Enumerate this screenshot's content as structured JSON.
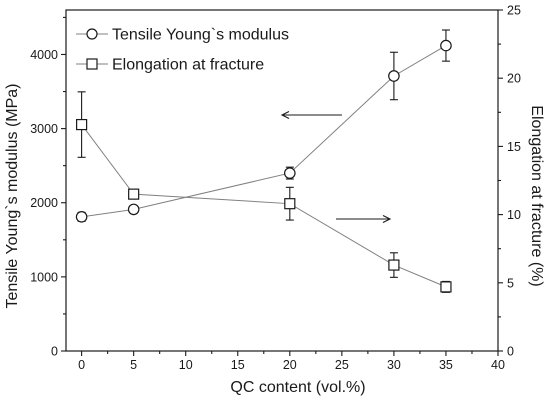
{
  "chart_data": {
    "type": "line",
    "xlabel": "QC content (vol.%)",
    "ylabel_left": "Tensile Young`s modulus (MPa)",
    "ylabel_right": "Elongation at fracture (%)",
    "xlim": [
      -1.5,
      40
    ],
    "ylim_left": [
      0,
      4600
    ],
    "ylim_right": [
      0,
      25
    ],
    "x_ticks": [
      0,
      5,
      10,
      15,
      20,
      25,
      30,
      35,
      40
    ],
    "y_left_ticks": [
      0,
      1000,
      2000,
      3000,
      4000
    ],
    "y_right_ticks": [
      0,
      5,
      10,
      15,
      20,
      25
    ],
    "grid": false,
    "legend_position": "top-left",
    "series": [
      {
        "name": "Tensile Young`s modulus",
        "axis": "left",
        "marker": "circle",
        "x": [
          0,
          5,
          20,
          30,
          35
        ],
        "y": [
          1810,
          1910,
          2400,
          3710,
          4120
        ],
        "error": [
          60,
          50,
          80,
          320,
          210
        ]
      },
      {
        "name": "Elongation at fracture",
        "axis": "right",
        "marker": "square",
        "x": [
          0,
          5,
          20,
          30,
          35
        ],
        "y": [
          16.6,
          11.5,
          10.8,
          6.3,
          4.7
        ],
        "error": [
          2.4,
          0.2,
          1.2,
          0.9,
          0.4
        ]
      }
    ]
  },
  "colors": {
    "axis": "#1a1a1a",
    "line": "#808080",
    "marker_fill": "#ffffff"
  }
}
